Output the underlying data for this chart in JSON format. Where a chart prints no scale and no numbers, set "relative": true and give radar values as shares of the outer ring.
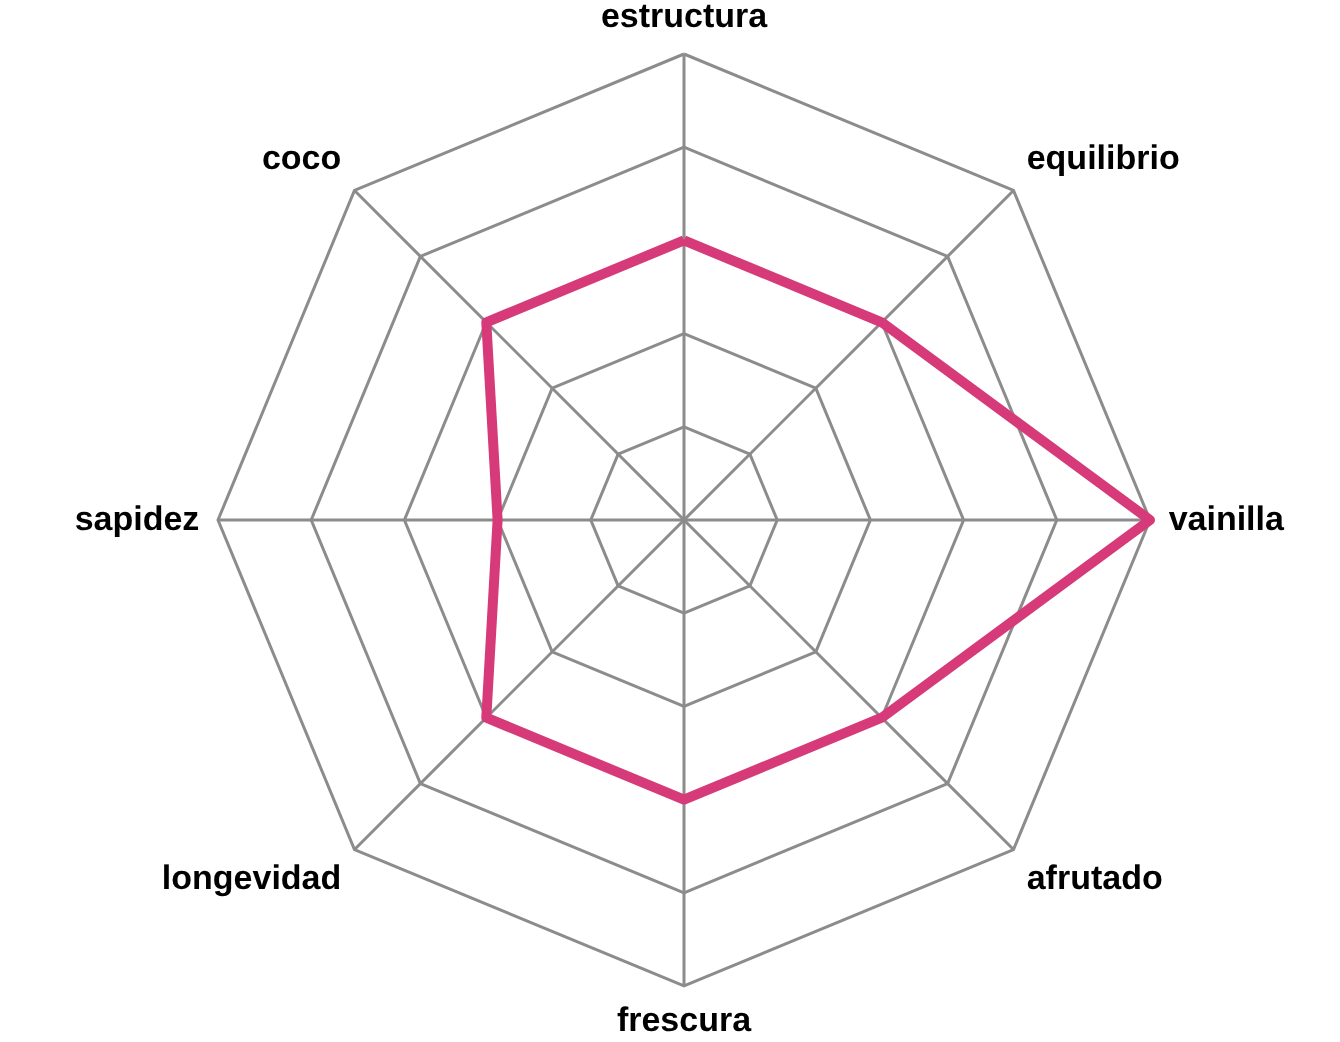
{
  "chart_data": {
    "type": "radar",
    "relative": true,
    "grid": true,
    "categories": [
      "estructura",
      "equilibrio",
      "vainilla",
      "afrutado",
      "frescura",
      "longevidad",
      "sapidez",
      "coco"
    ],
    "series": [
      {
        "color": "#d63a78",
        "values": [
          0.6,
          0.6,
          1,
          0.6,
          0.6,
          0.6,
          0.4,
          0.6
        ]
      }
    ]
  }
}
